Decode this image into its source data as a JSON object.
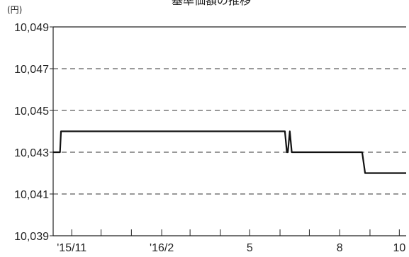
{
  "chart_data": {
    "type": "line",
    "title": "基準価額の推移",
    "unit_label": "(円)",
    "xlabel": "",
    "ylabel": "",
    "ylim": [
      10039,
      10049
    ],
    "y_ticks": [
      10039,
      10041,
      10043,
      10045,
      10047,
      10049
    ],
    "y_tick_labels": [
      "10,039",
      "10,041",
      "10,043",
      "10,045",
      "10,047",
      "10,049"
    ],
    "x_ticks": [
      {
        "label": "'15/11",
        "date": "2015-11-01"
      },
      {
        "label": "'16/2",
        "date": "2016-02-01"
      },
      {
        "label": "5",
        "date": "2016-05-01"
      },
      {
        "label": "8",
        "date": "2016-08-01"
      },
      {
        "label": "10",
        "date": "2016-10-01"
      }
    ],
    "x_minor_ticks": [
      "2015-12-01",
      "2016-01-01",
      "2016-03-01",
      "2016-04-01",
      "2016-06-01",
      "2016-07-01",
      "2016-09-01"
    ],
    "x_range": [
      "2015-10-13",
      "2016-10-08"
    ],
    "grid": "horizontal dashed",
    "series": [
      {
        "name": "",
        "color": "#111111",
        "points": [
          [
            "2015-10-13",
            10043
          ],
          [
            "2015-10-20",
            10043
          ],
          [
            "2015-10-21",
            10044
          ],
          [
            "2016-06-06",
            10044
          ],
          [
            "2016-06-08",
            10043
          ],
          [
            "2016-06-09",
            10043
          ],
          [
            "2016-06-11",
            10044
          ],
          [
            "2016-06-13",
            10043
          ],
          [
            "2016-08-24",
            10043
          ],
          [
            "2016-08-27",
            10042
          ],
          [
            "2016-10-08",
            10042
          ]
        ]
      }
    ]
  }
}
